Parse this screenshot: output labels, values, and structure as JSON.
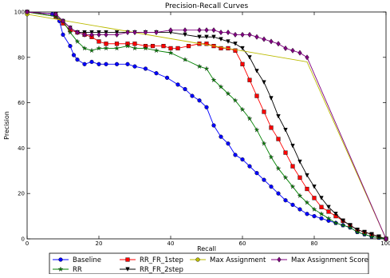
{
  "chart_data": {
    "type": "line",
    "title": "Precision-Recall Curves",
    "xlabel": "Recall",
    "ylabel": "Precision",
    "xlim": [
      0,
      100
    ],
    "ylim": [
      0,
      100
    ],
    "x_ticks": [
      "0",
      "20",
      "40",
      "60",
      "80",
      "100"
    ],
    "y_ticks": [
      "0",
      "20",
      "40",
      "60",
      "80",
      "100"
    ],
    "grid": false,
    "legend_position": "bottom",
    "series": [
      {
        "name": "Baseline",
        "color": "#0000ff",
        "marker": "circle",
        "x": [
          0,
          7,
          9,
          10,
          12,
          13,
          14,
          16,
          18,
          20,
          22,
          25,
          28,
          30,
          33,
          36,
          39,
          42,
          44,
          46,
          48,
          50,
          52,
          54,
          56,
          58,
          60,
          62,
          64,
          66,
          68,
          70,
          72,
          74,
          76,
          78,
          80,
          82,
          84,
          86,
          88,
          90,
          92,
          94,
          96,
          98,
          100
        ],
        "y": [
          100,
          99,
          96,
          90,
          85,
          81,
          79,
          77,
          78,
          77,
          77,
          77,
          77,
          76,
          75,
          73,
          71,
          68,
          66,
          63,
          61,
          58,
          50,
          45,
          42,
          37,
          35,
          32,
          29,
          26,
          23,
          20,
          17,
          15,
          13,
          11,
          10,
          9,
          8,
          7,
          6,
          5,
          3,
          2,
          1,
          0.5,
          0
        ]
      },
      {
        "name": "RR_FR_1step",
        "color": "#ff0000",
        "marker": "square",
        "x": [
          0,
          8,
          10,
          12,
          14,
          16,
          18,
          20,
          22,
          25,
          28,
          30,
          33,
          35,
          38,
          40,
          42,
          45,
          48,
          50,
          52,
          54,
          56,
          58,
          60,
          62,
          64,
          66,
          68,
          70,
          72,
          74,
          76,
          78,
          80,
          82,
          84,
          86,
          88,
          90,
          92,
          94,
          96,
          98,
          100
        ],
        "y": [
          100,
          98,
          95,
          92,
          91,
          90,
          89,
          87,
          86,
          86,
          86,
          86,
          85,
          85,
          85,
          84,
          84,
          85,
          86,
          86,
          85,
          84,
          84,
          83,
          77,
          70,
          63,
          56,
          49,
          44,
          38,
          32,
          27,
          22,
          18,
          14,
          12,
          10,
          8,
          6,
          4,
          3,
          2,
          1,
          0
        ]
      },
      {
        "name": "RR",
        "color": "#008000",
        "marker": "star",
        "x": [
          0,
          8,
          10,
          12,
          14,
          16,
          18,
          20,
          22,
          25,
          28,
          30,
          33,
          36,
          40,
          44,
          48,
          50,
          52,
          54,
          56,
          58,
          60,
          62,
          64,
          66,
          68,
          70,
          72,
          74,
          76,
          78,
          80,
          82,
          84,
          86,
          88,
          90,
          92,
          94,
          96,
          98,
          100
        ],
        "y": [
          100,
          98,
          96,
          91,
          87,
          84,
          83,
          84,
          84,
          84,
          85,
          84,
          84,
          83,
          82,
          79,
          76,
          75,
          70,
          67,
          64,
          61,
          57,
          53,
          48,
          42,
          36,
          31,
          27,
          23,
          19,
          16,
          13,
          11,
          9,
          7,
          6,
          5,
          3,
          2,
          1,
          0.5,
          0
        ]
      },
      {
        "name": "RR_FR_2step",
        "color": "#000000",
        "marker": "triangle-down",
        "x": [
          0,
          8,
          10,
          12,
          14,
          16,
          18,
          20,
          22,
          25,
          28,
          30,
          33,
          36,
          40,
          44,
          48,
          50,
          52,
          54,
          56,
          58,
          60,
          62,
          64,
          66,
          68,
          70,
          72,
          74,
          76,
          78,
          80,
          82,
          84,
          86,
          88,
          90,
          92,
          94,
          96,
          98,
          100
        ],
        "y": [
          100,
          99,
          96,
          93,
          91,
          91,
          91,
          91,
          91,
          91,
          91,
          91,
          91,
          91,
          91,
          90,
          89,
          89,
          89,
          88,
          87,
          86,
          84,
          80,
          74,
          69,
          62,
          54,
          48,
          41,
          34,
          28,
          23,
          18,
          14,
          11,
          8,
          6,
          4,
          3,
          2,
          1,
          0
        ]
      },
      {
        "name": "Max Assignment",
        "color": "#bbbb00",
        "marker": "circle",
        "x": [
          0,
          78,
          100
        ],
        "y": [
          99,
          78,
          0
        ]
      },
      {
        "name": "Max Assignment Score",
        "color": "#800080",
        "marker": "diamond",
        "x": [
          0,
          8,
          10,
          12,
          14,
          16,
          18,
          20,
          22,
          25,
          28,
          30,
          33,
          36,
          40,
          44,
          48,
          50,
          52,
          54,
          56,
          58,
          60,
          62,
          64,
          66,
          68,
          70,
          72,
          74,
          76,
          78,
          100
        ],
        "y": [
          100,
          99,
          96,
          93,
          91,
          90,
          90,
          90,
          90,
          90,
          91,
          91,
          91,
          91,
          92,
          92,
          92,
          92,
          92,
          91,
          91,
          90,
          90,
          90,
          89,
          88,
          87,
          86,
          84,
          83,
          82,
          80,
          0
        ]
      }
    ],
    "legend": [
      {
        "label": "Baseline",
        "color": "#0000ff",
        "marker": "circle"
      },
      {
        "label": "RR_FR_1step",
        "color": "#ff0000",
        "marker": "square"
      },
      {
        "label": "Max Assignment",
        "color": "#bbbb00",
        "marker": "circle"
      },
      {
        "label": "Max Assignment Score",
        "color": "#800080",
        "marker": "diamond"
      },
      {
        "label": "RR",
        "color": "#008000",
        "marker": "star"
      },
      {
        "label": "RR_FR_2step",
        "color": "#000000",
        "marker": "triangle-down"
      }
    ]
  }
}
